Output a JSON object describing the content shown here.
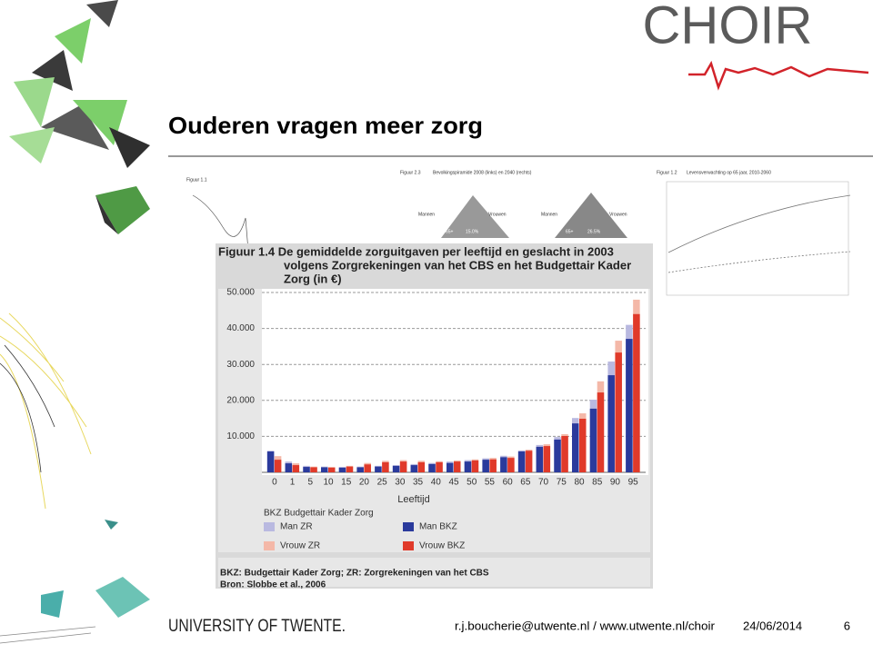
{
  "slide": {
    "title": "Ouderen vragen meer zorg",
    "logo": "CHOIR",
    "footer_left": "UNIVERSITY OF TWENTE.",
    "footer_contact": "r.j.boucherie@utwente.nl / www.utwente.nl/choir",
    "footer_date": "24/06/2014",
    "page_number": "6"
  },
  "background_figures": {
    "fig_a": "Figuur 1.1",
    "fig_b": "Figuur 2.3",
    "fig_b_title": "Bevolkingspiramide 2008 (links) en 2040 (rechts)",
    "men": "Mannen",
    "women": "Vrouwen",
    "age_group": "65+",
    "share_2008": "15.0%",
    "share_2040": "26.5%",
    "fig_c": "Figuur 1.2",
    "fig_c_title": "Levensverwachting op 65 jaar, 2010-2060"
  },
  "chart_data": {
    "type": "bar",
    "title_lines": [
      "Figuur 1.4 De gemiddelde zorguitgaven per leeftijd en geslacht in 2003",
      "volgens Zorgrekeningen van het CBS en het Budgettair Kader",
      "Zorg (in €)"
    ],
    "x_label": "Leeftijd",
    "categories": [
      "0",
      "1",
      "5",
      "10",
      "15",
      "20",
      "25",
      "30",
      "35",
      "40",
      "45",
      "50",
      "55",
      "60",
      "65",
      "70",
      "75",
      "80",
      "85",
      "90",
      "95"
    ],
    "ylim": [
      0,
      50000
    ],
    "yticks": [
      {
        "value": 10000,
        "label": "10.000"
      },
      {
        "value": 20000,
        "label": "20.000"
      },
      {
        "value": 30000,
        "label": "30.000"
      },
      {
        "value": 40000,
        "label": "40.000"
      },
      {
        "value": 50000,
        "label": "50.000"
      }
    ],
    "grid": true,
    "legend_title": "BKZ Budgettair Kader Zorg",
    "series": [
      {
        "name": "Man ZR",
        "color": "#b9b9e0",
        "group": 0,
        "values": [
          6000,
          3000,
          1800,
          1600,
          1500,
          1600,
          1800,
          2000,
          2300,
          2600,
          3000,
          3400,
          3900,
          4600,
          6100,
          7600,
          9800,
          15100,
          20200,
          30800,
          41000
        ]
      },
      {
        "name": "Man BKZ",
        "color": "#2a3a9c",
        "group": 0,
        "values": [
          5800,
          2500,
          1500,
          1400,
          1300,
          1400,
          1600,
          1800,
          2000,
          2300,
          2600,
          3000,
          3500,
          4200,
          5800,
          7100,
          9100,
          13600,
          17700,
          27000,
          37100
        ]
      },
      {
        "name": "Vrouw ZR",
        "color": "#f4b8a8",
        "group": 1,
        "values": [
          4500,
          2500,
          1600,
          1500,
          1800,
          2600,
          3200,
          3400,
          3200,
          3100,
          3300,
          3600,
          4000,
          4400,
          6300,
          7800,
          10600,
          16400,
          25300,
          36600,
          48000
        ]
      },
      {
        "name": "Vrouw BKZ",
        "color": "#e03a2a",
        "group": 1,
        "values": [
          3500,
          2000,
          1400,
          1300,
          1600,
          2200,
          2800,
          3000,
          2800,
          2800,
          3000,
          3300,
          3600,
          4000,
          6000,
          7300,
          10100,
          14900,
          22200,
          33300,
          44000
        ]
      }
    ],
    "footnotes": [
      "BKZ: Budgettair Kader Zorg; ZR: Zorgrekeningen van het CBS",
      "Bron: Slobbe et al., 2006"
    ]
  }
}
